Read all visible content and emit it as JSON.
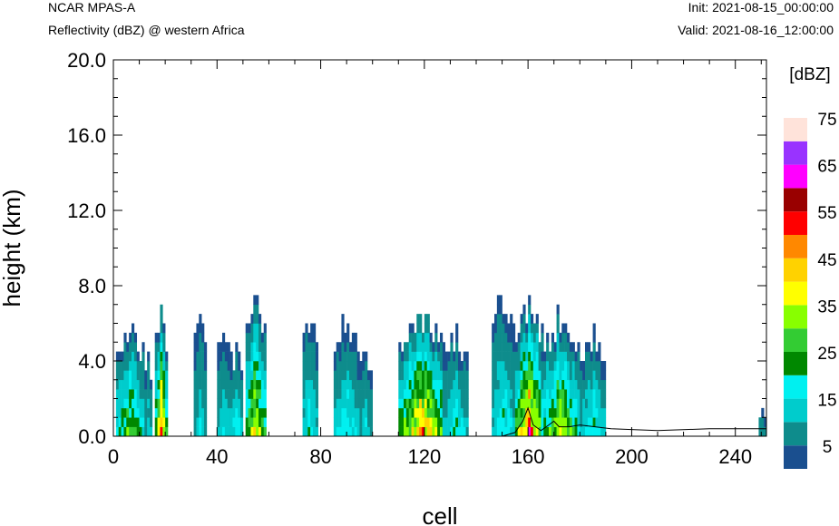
{
  "header": {
    "model": "NCAR MPAS-A",
    "field": "Reflectivity (dBZ) @ western Africa",
    "init": "Init: 2021-08-15_00:00:00",
    "valid": "Valid: 2021-08-16_12:00:00"
  },
  "chart_data": {
    "type": "heatmap",
    "title": "",
    "xlabel": "cell",
    "ylabel": "height (km)",
    "xlim": [
      0,
      252
    ],
    "ylim": [
      0,
      20
    ],
    "xticks": [
      0,
      40,
      80,
      120,
      160,
      200,
      240
    ],
    "xtick_labels": [
      "0",
      "40",
      "80",
      "120",
      "160",
      "200",
      "240"
    ],
    "yticks": [
      0,
      4,
      8,
      12,
      16,
      20
    ],
    "ytick_labels": [
      "0.0",
      "4.0",
      "8.0",
      "12.0",
      "16.0",
      "20.0"
    ],
    "colorbar": {
      "unit": "[dBZ]",
      "levels": [
        0,
        5,
        10,
        15,
        20,
        25,
        30,
        35,
        40,
        45,
        50,
        55,
        60,
        65,
        70,
        75
      ],
      "labels": [
        "5",
        "15",
        "25",
        "35",
        "45",
        "55",
        "65",
        "75"
      ],
      "colors": [
        "#1a4f8f",
        "#0e8c8c",
        "#00cccc",
        "#00f0f0",
        "#008800",
        "#33cc33",
        "#88ff00",
        "#ffff00",
        "#ffd200",
        "#ff8800",
        "#ff0000",
        "#990000",
        "#ff00ff",
        "#9933ff",
        "#ffe3da"
      ]
    },
    "cells": [
      {
        "x": [
          1,
          12
        ],
        "ytop": 5.5,
        "max_dbz": 30
      },
      {
        "x": [
          12,
          15
        ],
        "ytop": 4.0,
        "max_dbz": 15
      },
      {
        "x": [
          16,
          21
        ],
        "ytop": 6.0,
        "max_dbz": 45
      },
      {
        "x": [
          31,
          36
        ],
        "ytop": 6.5,
        "max_dbz": 15
      },
      {
        "x": [
          40,
          46
        ],
        "ytop": 5.5,
        "max_dbz": 15
      },
      {
        "x": [
          45,
          50
        ],
        "ytop": 4.5,
        "max_dbz": 20
      },
      {
        "x": [
          51,
          59
        ],
        "ytop": 7.0,
        "max_dbz": 40
      },
      {
        "x": [
          73,
          79
        ],
        "ytop": 6.0,
        "max_dbz": 20
      },
      {
        "x": [
          85,
          95
        ],
        "ytop": 6.0,
        "max_dbz": 20
      },
      {
        "x": [
          95,
          100
        ],
        "ytop": 4.5,
        "max_dbz": 15
      },
      {
        "x": [
          110,
          128
        ],
        "ytop": 6.0,
        "max_dbz": 45
      },
      {
        "x": [
          127,
          137
        ],
        "ytop": 5.0,
        "max_dbz": 20
      },
      {
        "x": [
          146,
          155
        ],
        "ytop": 7.0,
        "max_dbz": 20
      },
      {
        "x": [
          155,
          166
        ],
        "ytop": 6.5,
        "max_dbz": 50
      },
      {
        "x": [
          165,
          180
        ],
        "ytop": 6.0,
        "max_dbz": 35
      },
      {
        "x": [
          180,
          190
        ],
        "ytop": 5.0,
        "max_dbz": 20
      },
      {
        "x": [
          249,
          252
        ],
        "ytop": 1.0,
        "max_dbz": 10
      }
    ],
    "terrain": [
      [
        0,
        0
      ],
      [
        150,
        0
      ],
      [
        155,
        0.2
      ],
      [
        158,
        0.8
      ],
      [
        160,
        1.5
      ],
      [
        162,
        0.6
      ],
      [
        165,
        0.3
      ],
      [
        168,
        0.6
      ],
      [
        170,
        0.8
      ],
      [
        172,
        0.5
      ],
      [
        176,
        0.5
      ],
      [
        180,
        0.6
      ],
      [
        192,
        0.4
      ],
      [
        210,
        0.3
      ],
      [
        230,
        0.4
      ],
      [
        252,
        0.4
      ]
    ]
  }
}
